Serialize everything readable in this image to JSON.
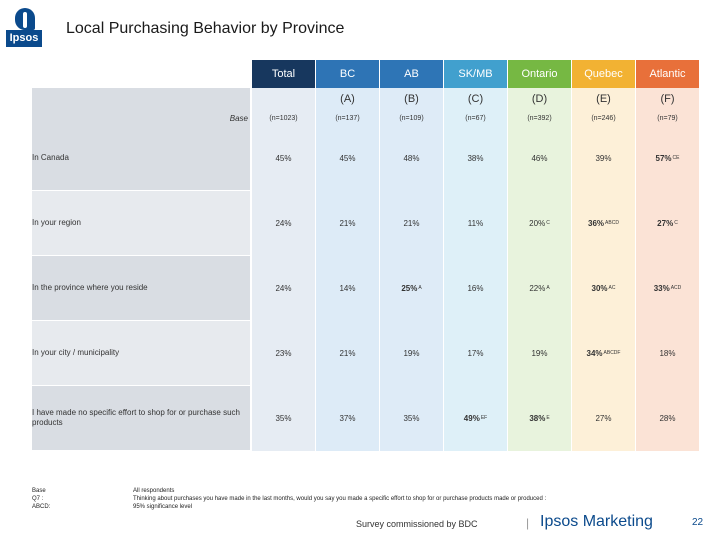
{
  "logo": {
    "text": "Ipsos"
  },
  "title": "Local Purchasing Behavior by Province",
  "base_label": "Base",
  "columns": [
    {
      "name": "Total",
      "letter": "",
      "n": "(n=1023)",
      "head_color": "#17375e",
      "body_color": "#e6ecf3"
    },
    {
      "name": "BC",
      "letter": "(A)",
      "n": "(n=137)",
      "head_color": "#2e74b5",
      "body_color": "#ddebf7"
    },
    {
      "name": "AB",
      "letter": "(B)",
      "n": "(n=109)",
      "head_color": "#2e75b6",
      "body_color": "#deebf7"
    },
    {
      "name": "SK/MB",
      "letter": "(C)",
      "n": "(n=67)",
      "head_color": "#41a0ce",
      "body_color": "#def0f8"
    },
    {
      "name": "Ontario",
      "letter": "(D)",
      "n": "(n=392)",
      "head_color": "#76b843",
      "body_color": "#e8f3dd"
    },
    {
      "name": "Quebec",
      "letter": "(E)",
      "n": "(n=246)",
      "head_color": "#f2b233",
      "body_color": "#fdf0d8"
    },
    {
      "name": "Atlantic",
      "letter": "(F)",
      "n": "(n=79)",
      "head_color": "#e8703a",
      "body_color": "#fbe3d6"
    }
  ],
  "rows": [
    {
      "label": "In Canada",
      "values": [
        {
          "v": "45%",
          "sig": "",
          "bold": false
        },
        {
          "v": "45%",
          "sig": "",
          "bold": false
        },
        {
          "v": "48%",
          "sig": "",
          "bold": false
        },
        {
          "v": "38%",
          "sig": "",
          "bold": false
        },
        {
          "v": "46%",
          "sig": "",
          "bold": false
        },
        {
          "v": "39%",
          "sig": "",
          "bold": false
        },
        {
          "v": "57%",
          "sig": "CE",
          "bold": true
        }
      ]
    },
    {
      "label": "In your region",
      "values": [
        {
          "v": "24%",
          "sig": "",
          "bold": false
        },
        {
          "v": "21%",
          "sig": "",
          "bold": false
        },
        {
          "v": "21%",
          "sig": "",
          "bold": false
        },
        {
          "v": "11%",
          "sig": "",
          "bold": false
        },
        {
          "v": "20%",
          "sig": "C",
          "bold": false
        },
        {
          "v": "36%",
          "sig": "ABCD",
          "bold": true
        },
        {
          "v": "27%",
          "sig": "C",
          "bold": true
        }
      ]
    },
    {
      "label": "In the province where you reside",
      "values": [
        {
          "v": "24%",
          "sig": "",
          "bold": false
        },
        {
          "v": "14%",
          "sig": "",
          "bold": false
        },
        {
          "v": "25%",
          "sig": "A",
          "bold": true
        },
        {
          "v": "16%",
          "sig": "",
          "bold": false
        },
        {
          "v": "22%",
          "sig": "A",
          "bold": false
        },
        {
          "v": "30%",
          "sig": "AC",
          "bold": true
        },
        {
          "v": "33%",
          "sig": "ACD",
          "bold": true
        }
      ]
    },
    {
      "label": "In your city / municipality",
      "values": [
        {
          "v": "23%",
          "sig": "",
          "bold": false
        },
        {
          "v": "21%",
          "sig": "",
          "bold": false
        },
        {
          "v": "19%",
          "sig": "",
          "bold": false
        },
        {
          "v": "17%",
          "sig": "",
          "bold": false
        },
        {
          "v": "19%",
          "sig": "",
          "bold": false
        },
        {
          "v": "34%",
          "sig": "ABCDF",
          "bold": true
        },
        {
          "v": "18%",
          "sig": "",
          "bold": false
        }
      ]
    },
    {
      "label": "I have made no specific effort to shop for or purchase such products",
      "values": [
        {
          "v": "35%",
          "sig": "",
          "bold": false
        },
        {
          "v": "37%",
          "sig": "",
          "bold": false
        },
        {
          "v": "35%",
          "sig": "",
          "bold": false
        },
        {
          "v": "49%",
          "sig": "EF",
          "bold": true
        },
        {
          "v": "38%",
          "sig": "E",
          "bold": true
        },
        {
          "v": "27%",
          "sig": "",
          "bold": false
        },
        {
          "v": "28%",
          "sig": "",
          "bold": false
        }
      ]
    }
  ],
  "footer": {
    "left": [
      "Base",
      "Q7 :",
      "ABCD:"
    ],
    "right": [
      "All respondents",
      "Thinking about purchases you have made in the last months, would you say you made a specific effort to shop for or purchase products made or produced :",
      "95% significance level"
    ]
  },
  "survey_text": "Survey commissioned by BDC",
  "separator": "|",
  "brand": "Ipsos Marketing",
  "page_number": "22"
}
